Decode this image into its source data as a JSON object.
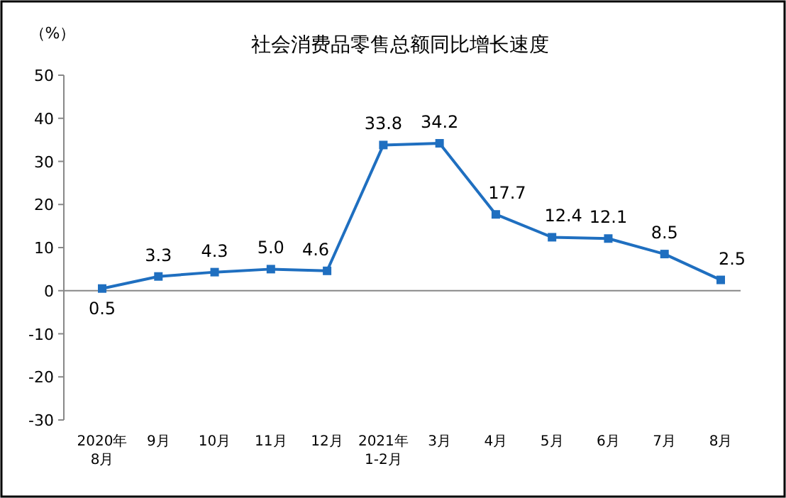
{
  "chart_data": {
    "type": "line",
    "title": "社会消费品零售总额同比增长速度",
    "ylabel": "（%）",
    "categories": [
      "2020年\n8月",
      "9月",
      "10月",
      "11月",
      "12月",
      "2021年\n1-2月",
      "3月",
      "4月",
      "5月",
      "6月",
      "7月",
      "8月"
    ],
    "series": [
      {
        "color": "#1f6fc0",
        "values": [
          0.5,
          3.3,
          4.3,
          5.0,
          4.6,
          33.8,
          34.2,
          17.7,
          12.4,
          12.1,
          8.5,
          2.5
        ],
        "value_labels": [
          "0.5",
          "3.3",
          "4.3",
          "5.0",
          "4.6",
          "33.8",
          "34.2",
          "17.7",
          "12.4",
          "12.1",
          "8.5",
          "2.5"
        ]
      }
    ],
    "ylim": [
      -30,
      50
    ],
    "yticks": [
      -30,
      -20,
      -10,
      0,
      10,
      20,
      30,
      40,
      50
    ],
    "marker": "square"
  }
}
